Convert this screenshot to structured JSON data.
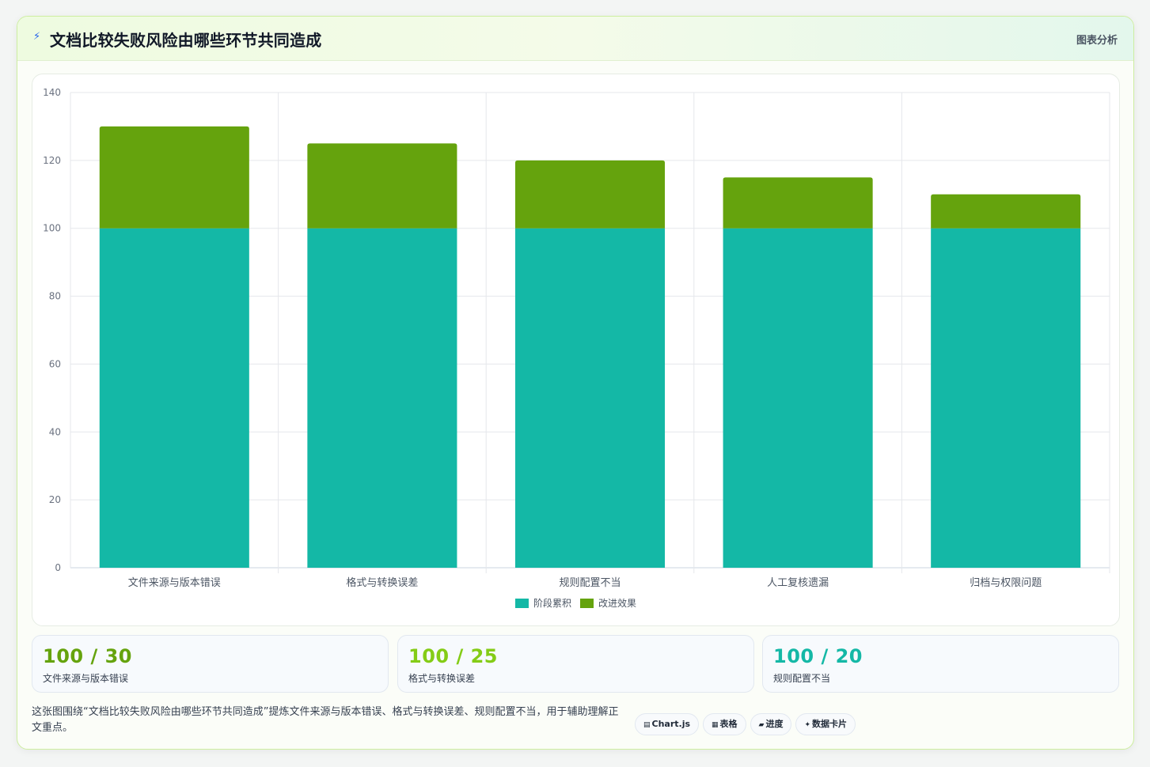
{
  "header": {
    "title": "文档比较失败风险由哪些环节共同造成",
    "tag": "图表分析"
  },
  "chart_data": {
    "type": "bar",
    "stacked": true,
    "categories": [
      "文件来源与版本错误",
      "格式与转换误差",
      "规则配置不当",
      "人工复核遗漏",
      "归档与权限问题"
    ],
    "series": [
      {
        "name": "阶段累积",
        "values": [
          100,
          100,
          100,
          100,
          100
        ],
        "color": "#14b8a6"
      },
      {
        "name": "改进效果",
        "values": [
          30,
          25,
          20,
          15,
          10
        ],
        "color": "#65a30d"
      }
    ],
    "ylim": [
      0,
      140
    ],
    "yticks": [
      0,
      20,
      40,
      60,
      80,
      100,
      120,
      140
    ],
    "grid": true,
    "legend": "bottom"
  },
  "stats": [
    {
      "value": "100 / 30",
      "label": "文件来源与版本错误",
      "color": "#65a30d"
    },
    {
      "value": "100 / 25",
      "label": "格式与转换误差",
      "color": "#84cc16"
    },
    {
      "value": "100 / 20",
      "label": "规则配置不当",
      "color": "#14b8a6"
    }
  ],
  "footer": {
    "text": "这张图围绕“文档比较失败风险由哪些环节共同造成”提炼文件来源与版本错误、格式与转换误差、规则配置不当，用于辅助理解正文重点。"
  },
  "chips": [
    {
      "icon": "▤",
      "label": "Chart.js",
      "icon_name": "chart-icon"
    },
    {
      "icon": "▦",
      "label": "表格",
      "icon_name": "table-icon"
    },
    {
      "icon": "▰",
      "label": "进度",
      "icon_name": "progress-icon"
    },
    {
      "icon": "✦",
      "label": "数据卡片",
      "icon_name": "sparkle-icon"
    }
  ]
}
